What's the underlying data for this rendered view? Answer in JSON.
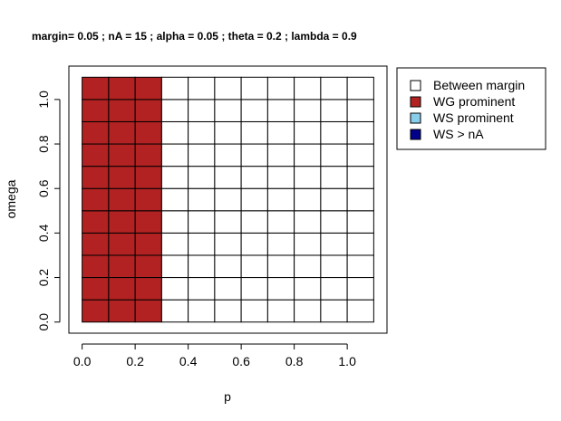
{
  "chart_data": {
    "type": "heatmap",
    "title": "margin= 0.05 ; nA = 15 ; alpha = 0.05 ; theta = 0.2 ; lambda = 0.9",
    "xlabel": "p",
    "ylabel": "omega",
    "xlim": [
      -0.05,
      1.15
    ],
    "ylim": [
      -0.05,
      1.15
    ],
    "x_ticks": [
      0.0,
      0.2,
      0.4,
      0.6,
      0.8,
      1.0
    ],
    "y_ticks": [
      0.0,
      0.2,
      0.4,
      0.6,
      0.8,
      1.0
    ],
    "x_tick_labels": [
      "0.0",
      "0.2",
      "0.4",
      "0.6",
      "0.8",
      "1.0"
    ],
    "y_tick_labels": [
      "0.0",
      "0.2",
      "0.4",
      "0.6",
      "0.8",
      "1.0"
    ],
    "x_edges": [
      0.0,
      0.1,
      0.2,
      0.3,
      0.4,
      0.5,
      0.6,
      0.7,
      0.8,
      0.9,
      1.0,
      1.1
    ],
    "y_edges": [
      0.0,
      0.1,
      0.2,
      0.3,
      0.4,
      0.5,
      0.6,
      0.7,
      0.8,
      0.9,
      1.0,
      1.1
    ],
    "categories": [
      "Between margin",
      "WG prominent",
      "WS prominent",
      "WS > nA"
    ],
    "category_colors": [
      "#ffffff",
      "#b22222",
      "#87ceeb",
      "#00008b"
    ],
    "grid": [
      [
        1,
        1,
        1,
        0,
        0,
        0,
        0,
        0,
        0,
        0,
        0
      ],
      [
        1,
        1,
        1,
        0,
        0,
        0,
        0,
        0,
        0,
        0,
        0
      ],
      [
        1,
        1,
        1,
        0,
        0,
        0,
        0,
        0,
        0,
        0,
        0
      ],
      [
        1,
        1,
        1,
        0,
        0,
        0,
        0,
        0,
        0,
        0,
        0
      ],
      [
        1,
        1,
        1,
        0,
        0,
        0,
        0,
        0,
        0,
        0,
        0
      ],
      [
        1,
        1,
        1,
        0,
        0,
        0,
        0,
        0,
        0,
        0,
        0
      ],
      [
        1,
        1,
        1,
        0,
        0,
        0,
        0,
        0,
        0,
        0,
        0
      ],
      [
        1,
        1,
        1,
        0,
        0,
        0,
        0,
        0,
        0,
        0,
        0
      ],
      [
        1,
        1,
        1,
        0,
        0,
        0,
        0,
        0,
        0,
        0,
        0
      ],
      [
        1,
        1,
        1,
        0,
        0,
        0,
        0,
        0,
        0,
        0,
        0
      ],
      [
        1,
        1,
        1,
        0,
        0,
        0,
        0,
        0,
        0,
        0,
        0
      ]
    ],
    "legend": {
      "placement": "top-right, outside plot",
      "entries": [
        {
          "label": "Between margin",
          "color": "#ffffff"
        },
        {
          "label": "WG prominent",
          "color": "#b22222"
        },
        {
          "label": "WS prominent",
          "color": "#87ceeb"
        },
        {
          "label": "WS > nA",
          "color": "#00008b"
        }
      ]
    }
  }
}
